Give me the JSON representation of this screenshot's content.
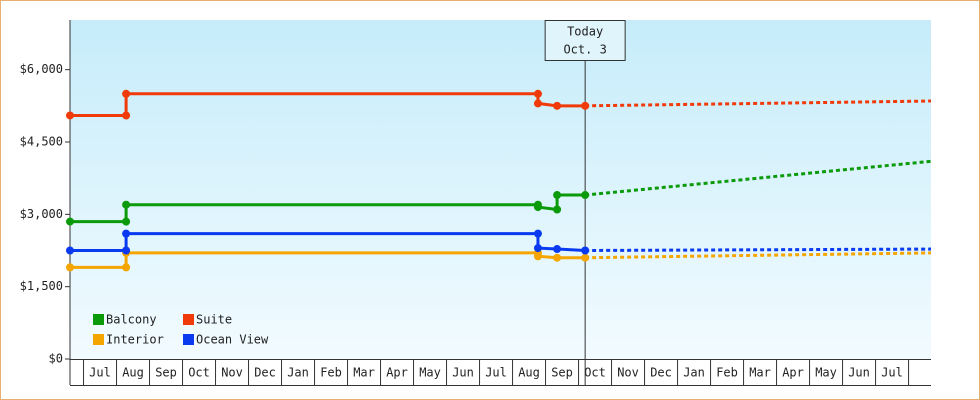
{
  "chart_data": {
    "type": "step-line",
    "xlim": [
      -0.91,
      25.18
    ],
    "xticks": [
      {
        "value": 0,
        "label": "Jul"
      },
      {
        "value": 1,
        "label": "Aug"
      },
      {
        "value": 2,
        "label": "Sep"
      },
      {
        "value": 3,
        "label": "Oct"
      },
      {
        "value": 4,
        "label": "Nov"
      },
      {
        "value": 5,
        "label": "Dec"
      },
      {
        "value": 6,
        "label": "Jan"
      },
      {
        "value": 7,
        "label": "Feb"
      },
      {
        "value": 8,
        "label": "Mar"
      },
      {
        "value": 9,
        "label": "Apr"
      },
      {
        "value": 10,
        "label": "May"
      },
      {
        "value": 11,
        "label": "Jun"
      },
      {
        "value": 12,
        "label": "Jul"
      },
      {
        "value": 13,
        "label": "Aug"
      },
      {
        "value": 14,
        "label": "Sep"
      },
      {
        "value": 15,
        "label": "Oct"
      },
      {
        "value": 16,
        "label": "Nov"
      },
      {
        "value": 17,
        "label": "Dec"
      },
      {
        "value": 18,
        "label": "Jan"
      },
      {
        "value": 19,
        "label": "Feb"
      },
      {
        "value": 20,
        "label": "Mar"
      },
      {
        "value": 21,
        "label": "Apr"
      },
      {
        "value": 22,
        "label": "May"
      },
      {
        "value": 23,
        "label": "Jun"
      },
      {
        "value": 24,
        "label": "Jul"
      }
    ],
    "ylim": [
      0,
      7030
    ],
    "yticks": [
      {
        "value": 0,
        "label": "$0"
      },
      {
        "value": 1500,
        "label": "$1,500"
      },
      {
        "value": 3000,
        "label": "$3,000"
      },
      {
        "value": 4500,
        "label": "$4,500"
      },
      {
        "value": 6000,
        "label": "$6,000"
      }
    ],
    "today": {
      "label": "Today",
      "date": "Oct. 3",
      "x": 14.7
    },
    "legend": "bottom-left",
    "series": [
      {
        "name": "Balcony",
        "color": "#0a9a0a",
        "x": [
          -0.91,
          0.79,
          0.79,
          13.27,
          13.27,
          13.85,
          13.85,
          14.7
        ],
        "values": [
          2850,
          2850,
          3200,
          3200,
          3150,
          3100,
          3400,
          3400
        ],
        "forecast_x": [
          14.7,
          25.18
        ],
        "forecast_values": [
          3400,
          4100
        ]
      },
      {
        "name": "Suite",
        "color": "#f03a0a",
        "x": [
          -0.91,
          0.79,
          0.79,
          13.27,
          13.27,
          13.85,
          14.7
        ],
        "values": [
          5050,
          5050,
          5500,
          5500,
          5300,
          5250,
          5250
        ],
        "forecast_x": [
          14.7,
          25.18
        ],
        "forecast_values": [
          5250,
          5350
        ]
      },
      {
        "name": "Interior",
        "color": "#f5a500",
        "x": [
          -0.91,
          0.79,
          0.79,
          13.27,
          13.27,
          13.85,
          14.7
        ],
        "values": [
          1900,
          1900,
          2200,
          2200,
          2130,
          2100,
          2100
        ],
        "forecast_x": [
          14.7,
          25.18
        ],
        "forecast_values": [
          2100,
          2200
        ]
      },
      {
        "name": "Ocean View",
        "color": "#0a3af0",
        "x": [
          -0.91,
          0.79,
          0.79,
          13.27,
          13.27,
          13.85,
          14.7
        ],
        "values": [
          2250,
          2250,
          2600,
          2600,
          2300,
          2280,
          2250
        ],
        "forecast_x": [
          14.7,
          25.18
        ],
        "forecast_values": [
          2250,
          2280
        ]
      }
    ]
  }
}
